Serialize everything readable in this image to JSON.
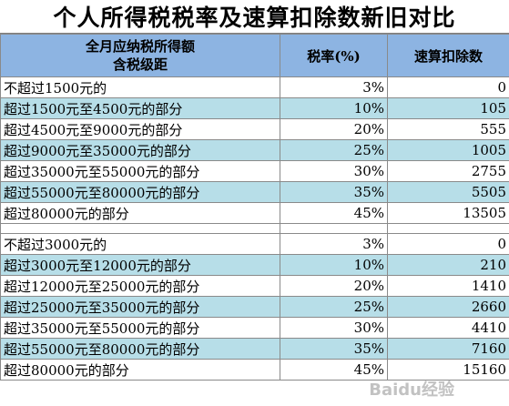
{
  "title": "个人所得税税率及速算扣除数新旧对比",
  "headers": {
    "col1_line1": "全月应纳税所得额",
    "col1_line2": "含税级距",
    "col2": "税率(%)",
    "col3": "速算扣除数"
  },
  "old_rows": [
    {
      "range": "不超过1500元的",
      "rate": "3%",
      "deduction": "0"
    },
    {
      "range": "超过1500元至4500元的部分",
      "rate": "10%",
      "deduction": "105"
    },
    {
      "range": "超过4500元至9000元的部分",
      "rate": "20%",
      "deduction": "555"
    },
    {
      "range": "超过9000元至35000元的部分",
      "rate": "25%",
      "deduction": "1005"
    },
    {
      "range": "超过35000元至55000元的部分",
      "rate": "30%",
      "deduction": "2755"
    },
    {
      "range": "超过55000元至80000元的部分",
      "rate": "35%",
      "deduction": "5505"
    },
    {
      "range": "超过80000元的部分",
      "rate": "45%",
      "deduction": "13505"
    }
  ],
  "new_rows": [
    {
      "range": "不超过3000元的",
      "rate": "3%",
      "deduction": "0"
    },
    {
      "range": "超过3000元至12000元的部分",
      "rate": "10%",
      "deduction": "210"
    },
    {
      "range": "超过12000元至25000元的部分",
      "rate": "20%",
      "deduction": "1410"
    },
    {
      "range": "超过25000元至35000元的部分",
      "rate": "25%",
      "deduction": "2660"
    },
    {
      "range": "超过35000元至55000元的部分",
      "rate": "30%",
      "deduction": "4410"
    },
    {
      "range": "超过55000元至80000元的部分",
      "rate": "35%",
      "deduction": "7160"
    },
    {
      "range": "超过80000元的部分",
      "rate": "45%",
      "deduction": "15160"
    }
  ],
  "watermark": "Baidu经验",
  "colors": {
    "header": "#8db4e2",
    "row_blue": "#b7dee8",
    "row_white": "#ffffff"
  }
}
